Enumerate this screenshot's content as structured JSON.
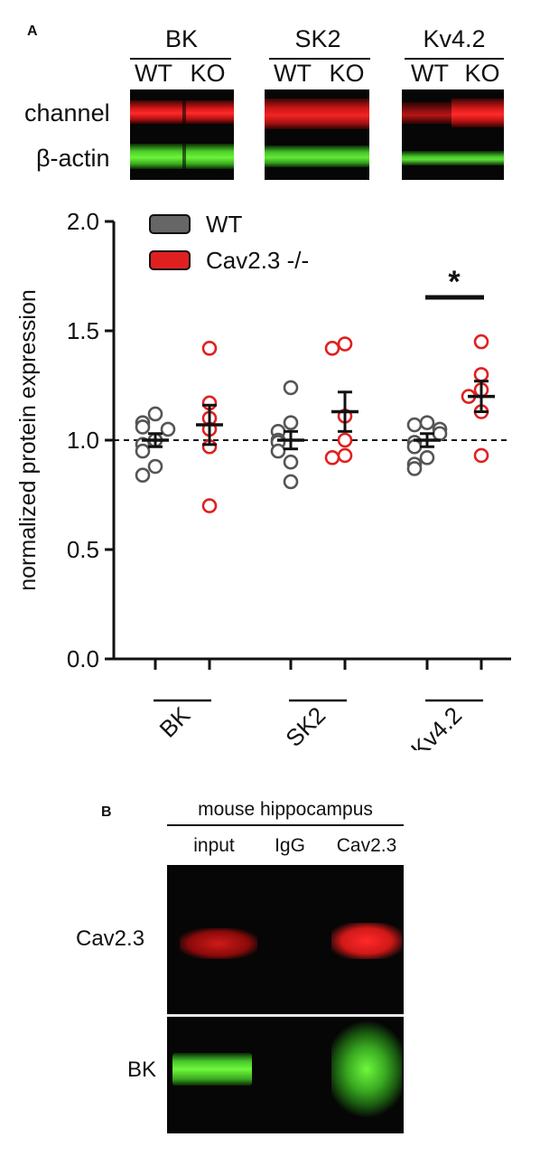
{
  "panelA": {
    "letter": "A",
    "blots": [
      {
        "title": "BK",
        "lanes": [
          "WT",
          "KO"
        ]
      },
      {
        "title": "SK2",
        "lanes": [
          "WT",
          "KO"
        ]
      },
      {
        "title": "Kv4.2",
        "lanes": [
          "WT",
          "KO"
        ]
      }
    ],
    "row_labels": [
      "channel",
      "β-actin"
    ]
  },
  "chart_data": {
    "type": "scatter",
    "title": "",
    "xlabel": "",
    "ylabel": "normalized protein expression",
    "ylim": [
      0,
      2.0
    ],
    "yticks": [
      "0.0",
      "0.5",
      "1.0",
      "1.5",
      "2.0"
    ],
    "reference_line": 1.0,
    "groups": [
      "BK",
      "SK2",
      "Kv4.2"
    ],
    "legend": {
      "placement": "top-left"
    },
    "series": [
      {
        "name": "WT",
        "color": "#555555",
        "fill": "#666666",
        "points": {
          "BK": [
            1.12,
            1.08,
            1.06,
            1.05,
            1.0,
            0.98,
            0.95,
            0.88,
            0.84
          ],
          "SK2": [
            1.24,
            1.08,
            1.04,
            1.0,
            0.99,
            0.95,
            0.9,
            0.81
          ],
          "Kv4.2": [
            1.08,
            1.07,
            1.05,
            1.03,
            0.99,
            0.97,
            0.92,
            0.89,
            0.87
          ]
        },
        "mean": {
          "BK": 1.0,
          "SK2": 1.0,
          "Kv4.2": 1.0
        },
        "sem": {
          "BK": 0.03,
          "SK2": 0.04,
          "Kv4.2": 0.03
        }
      },
      {
        "name": "Cav2.3 -/-",
        "color": "#e02020",
        "fill": "#e02020",
        "points": {
          "BK": [
            1.42,
            1.17,
            1.1,
            1.05,
            0.97,
            0.7
          ],
          "SK2": [
            1.44,
            1.42,
            1.11,
            1.0,
            0.93,
            0.92
          ],
          "Kv4.2": [
            1.45,
            1.3,
            1.23,
            1.2,
            1.13,
            0.93
          ]
        },
        "mean": {
          "BK": 1.07,
          "SK2": 1.13,
          "Kv4.2": 1.2
        },
        "sem": {
          "BK": 0.09,
          "SK2": 0.09,
          "Kv4.2": 0.07
        }
      }
    ],
    "annotations": [
      {
        "text": "*",
        "group": "Kv4.2"
      }
    ]
  },
  "panelB": {
    "letter": "B",
    "header": "mouse hippocampus",
    "lanes": [
      "input",
      "IgG",
      "Cav2.3"
    ],
    "row_labels": [
      "Cav2.3",
      "BK"
    ]
  }
}
